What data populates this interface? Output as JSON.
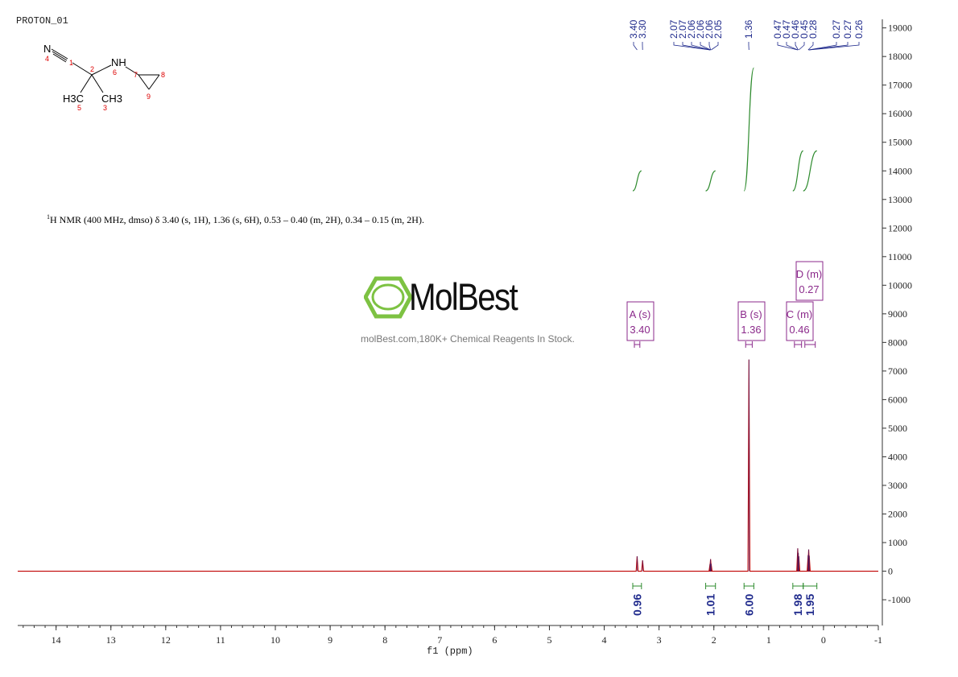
{
  "spectrum_name": "PROTON_01",
  "nmr_text": {
    "superscript": "1",
    "body": "H NMR (400 MHz, dmso) δ 3.40 (s, 1H), 1.36 (s, 6H), 0.53 – 0.40 (m, 2H), 0.34 – 0.15 (m, 2H)."
  },
  "watermark": {
    "brand": "MolBest",
    "tagline": "molBest.com,180K+ Chemical Reagents In Stock.",
    "accent_color": "#7dc242"
  },
  "structure": {
    "atoms": [
      {
        "label": "N",
        "number": "4"
      },
      {
        "label": "",
        "number": "1"
      },
      {
        "label": "",
        "number": "2"
      },
      {
        "label": "NH",
        "number": "6"
      },
      {
        "label": "",
        "number": "7"
      },
      {
        "label": "",
        "number": "8"
      },
      {
        "label": "",
        "number": "9"
      },
      {
        "label": "H3C",
        "number": "5"
      },
      {
        "label": "CH3",
        "number": "3"
      }
    ]
  },
  "colors": {
    "spectrum": "#c00000",
    "peak_label": "#1f2a8c",
    "integral": "#2e8b2e",
    "multiplet_box": "#8b2a8b",
    "axis": "#333333"
  },
  "chart_data": {
    "type": "line",
    "xlabel": "f1 (ppm)",
    "ylabel": "",
    "xlim": [
      14.7,
      -1.0
    ],
    "ylim": [
      -1900,
      19300
    ],
    "x_ticks": [
      14,
      13,
      12,
      11,
      10,
      9,
      8,
      7,
      6,
      5,
      4,
      3,
      2,
      1,
      0,
      -1
    ],
    "y_ticks": [
      -1000,
      0,
      1000,
      2000,
      3000,
      4000,
      5000,
      6000,
      7000,
      8000,
      9000,
      10000,
      11000,
      12000,
      13000,
      14000,
      15000,
      16000,
      17000,
      18000,
      19000
    ],
    "grid": false,
    "peaks": [
      {
        "ppm": 3.4,
        "height": 520
      },
      {
        "ppm": 3.3,
        "height": 380
      },
      {
        "ppm": 2.07,
        "height": 250
      },
      {
        "ppm": 2.06,
        "height": 420
      },
      {
        "ppm": 2.05,
        "height": 260
      },
      {
        "ppm": 1.36,
        "height": 7400
      },
      {
        "ppm": 0.47,
        "height": 800
      },
      {
        "ppm": 0.46,
        "height": 640
      },
      {
        "ppm": 0.45,
        "height": 520
      },
      {
        "ppm": 0.28,
        "height": 560
      },
      {
        "ppm": 0.27,
        "height": 760
      },
      {
        "ppm": 0.26,
        "height": 540
      }
    ],
    "peak_labels": [
      "3.40",
      "3.30",
      "2.07",
      "2.07",
      "2.06",
      "2.06",
      "2.06",
      "2.05",
      "1.36",
      "0.47",
      "0.47",
      "0.46",
      "0.45",
      "0.28",
      "0.27",
      "0.27",
      "0.26"
    ],
    "integrals": [
      {
        "from": 3.45,
        "to": 3.35,
        "value": "0.96",
        "curve_base": 13300,
        "curve_top": 14000
      },
      {
        "from": 2.12,
        "to": 2.0,
        "value": "1.01",
        "curve_base": 13300,
        "curve_top": 14000
      },
      {
        "from": 1.42,
        "to": 1.3,
        "value": "6.00",
        "curve_base": 13300,
        "curve_top": 17600
      },
      {
        "from": 0.53,
        "to": 0.4,
        "value": "1.98",
        "curve_base": 13300,
        "curve_top": 14700
      },
      {
        "from": 0.34,
        "to": 0.15,
        "value": "1.95",
        "curve_base": 13300,
        "curve_top": 14700
      }
    ],
    "multiplets": [
      {
        "name": "A (s)",
        "shift": "3.40",
        "from": 3.45,
        "to": 3.35
      },
      {
        "name": "B (s)",
        "shift": "1.36",
        "from": 1.42,
        "to": 1.3
      },
      {
        "name": "C (m)",
        "shift": "0.46",
        "from": 0.53,
        "to": 0.4
      },
      {
        "name": "D (m)",
        "shift": "0.27",
        "from": 0.34,
        "to": 0.15
      }
    ]
  }
}
